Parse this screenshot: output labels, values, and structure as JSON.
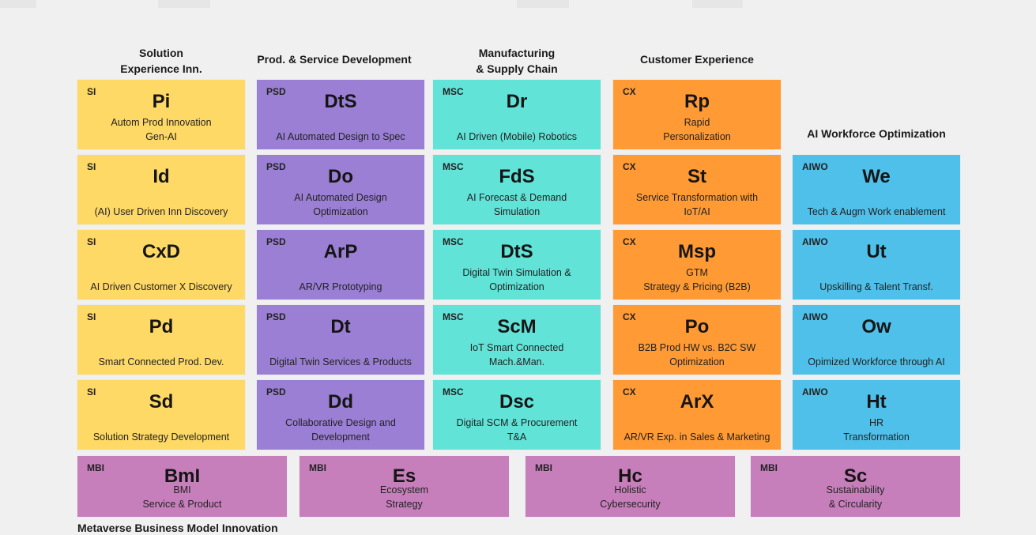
{
  "colors": {
    "si": "#ffd966",
    "psd": "#9b7fd4",
    "msc": "#62e3d8",
    "cx": "#ff9a35",
    "aiwo": "#4fc0ea",
    "mbi": "#c77fbb"
  },
  "headers": {
    "si": "Solution\nExperience Inn.",
    "psd": "Prod. & Service Development",
    "msc": "Manufacturing\n& Supply Chain",
    "cx": "Customer Experience",
    "aiwo": "AI Workforce Optimization"
  },
  "si": [
    {
      "tag": "SI",
      "abbr": "Pi",
      "desc": "Autom Prod Innovation\nGen-AI"
    },
    {
      "tag": "SI",
      "abbr": "Id",
      "desc": "(AI) User Driven Inn Discovery"
    },
    {
      "tag": "SI",
      "abbr": "CxD",
      "desc": "AI Driven Customer X Discovery"
    },
    {
      "tag": "SI",
      "abbr": "Pd",
      "desc": "Smart Connected Prod. Dev."
    },
    {
      "tag": "SI",
      "abbr": "Sd",
      "desc": "Solution Strategy Development"
    }
  ],
  "psd": [
    {
      "tag": "PSD",
      "abbr": "DtS",
      "desc": "AI Automated Design to Spec"
    },
    {
      "tag": "PSD",
      "abbr": "Do",
      "desc": "AI Automated Design\nOptimization"
    },
    {
      "tag": "PSD",
      "abbr": "ArP",
      "desc": "AR/VR Prototyping"
    },
    {
      "tag": "PSD",
      "abbr": "Dt",
      "desc": "Digital Twin Services & Products"
    },
    {
      "tag": "PSD",
      "abbr": "Dd",
      "desc": "Collaborative Design and\nDevelopment"
    }
  ],
  "msc": [
    {
      "tag": "MSC",
      "abbr": "Dr",
      "desc": "AI Driven (Mobile) Robotics"
    },
    {
      "tag": "MSC",
      "abbr": "FdS",
      "desc": "AI Forecast & Demand\nSimulation"
    },
    {
      "tag": "MSC",
      "abbr": "DtS",
      "desc": "Digital Twin Simulation &\nOptimization"
    },
    {
      "tag": "MSC",
      "abbr": "ScM",
      "desc": "IoT Smart Connected\nMach.&Man."
    },
    {
      "tag": "MSC",
      "abbr": "Dsc",
      "desc": "Digital SCM & Procurement\nT&A"
    }
  ],
  "cx": [
    {
      "tag": "CX",
      "abbr": "Rp",
      "desc": "Rapid\nPersonalization"
    },
    {
      "tag": "CX",
      "abbr": "St",
      "desc": "Service Transformation with\nIoT/AI"
    },
    {
      "tag": "CX",
      "abbr": "Msp",
      "desc": "GTM\nStrategy & Pricing (B2B)"
    },
    {
      "tag": "CX",
      "abbr": "Po",
      "desc": "B2B Prod HW vs. B2C SW\nOptimization"
    },
    {
      "tag": "CX",
      "abbr": "ArX",
      "desc": "AR/VR Exp. in Sales & Marketing"
    }
  ],
  "aiwo": [
    {
      "tag": "AIWO",
      "abbr": "We",
      "desc": "Tech & Augm Work enablement"
    },
    {
      "tag": "AIWO",
      "abbr": "Ut",
      "desc": "Upskilling & Talent Transf."
    },
    {
      "tag": "AIWO",
      "abbr": "Ow",
      "desc": "Opimized Workforce through AI"
    },
    {
      "tag": "AIWO",
      "abbr": "Ht",
      "desc": "HR\nTransformation"
    }
  ],
  "mbi": [
    {
      "tag": "MBI",
      "abbr": "BmI",
      "desc": "BMI\nService & Product"
    },
    {
      "tag": "MBI",
      "abbr": "Es",
      "desc": "Ecosystem\nStrategy"
    },
    {
      "tag": "MBI",
      "abbr": "Hc",
      "desc": "Holistic\nCybersecurity"
    },
    {
      "tag": "MBI",
      "abbr": "Sc",
      "desc": "Sustainability\n& Circularity"
    }
  ],
  "footer": "Metaverse Business Model Innovation"
}
